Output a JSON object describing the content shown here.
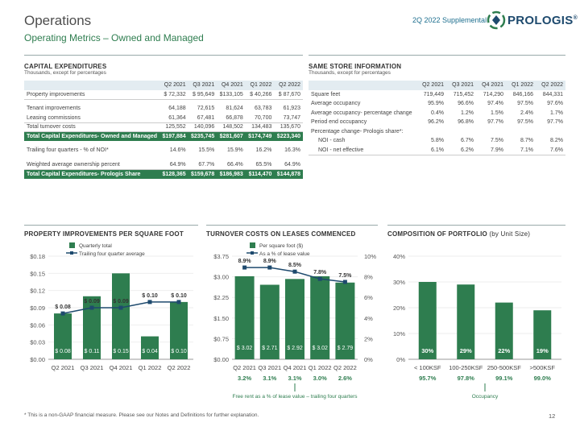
{
  "header": {
    "title": "Operations",
    "subtitle": "Operating Metrics – Owned and Managed",
    "supplement": "2Q 2022 Supplemental",
    "logo_text": "PROLOGIS",
    "logo_mark": "®",
    "brand_color": "#2e7d4f",
    "logo_color": "#1e4a6e"
  },
  "capex": {
    "heading": "CAPITAL EXPENDITURES",
    "subheading": "Thousands, except for percentages",
    "columns": [
      "Q2 2021",
      "Q3 2021",
      "Q4 2021",
      "Q1 2022",
      "Q2 2022"
    ],
    "rows": [
      {
        "label": "Property improvements",
        "values": [
          "$  72,332",
          "$  95,649",
          "$133,105",
          "$  40,266",
          "$  87,670"
        ],
        "style": "line"
      },
      {
        "label": "",
        "values": [
          "",
          "",
          "",
          "",
          ""
        ],
        "style": "gap"
      },
      {
        "label": "Tenant improvements",
        "values": [
          "64,188",
          "72,615",
          "81,624",
          "63,783",
          "61,923"
        ],
        "style": ""
      },
      {
        "label": "Leasing commissions",
        "values": [
          "61,364",
          "67,481",
          "66,878",
          "70,700",
          "73,747"
        ],
        "style": "line"
      },
      {
        "label": "Total turnover costs",
        "values": [
          "125,552",
          "140,096",
          "148,502",
          "134,483",
          "135,670"
        ],
        "style": "line"
      },
      {
        "label": "Total Capital Expenditures- Owned and Managed",
        "values": [
          "$197,884",
          "$235,745",
          "$281,607",
          "$174,749",
          "$223,340"
        ],
        "style": "hl"
      },
      {
        "label": "",
        "values": [
          "",
          "",
          "",
          "",
          ""
        ],
        "style": "gap"
      },
      {
        "label": "Trailing four quarters - % of NOI*",
        "values": [
          "14.6%",
          "15.5%",
          "15.9%",
          "16.2%",
          "16.3%"
        ],
        "style": ""
      },
      {
        "label": "",
        "values": [
          "",
          "",
          "",
          "",
          ""
        ],
        "style": "gap"
      },
      {
        "label": "Weighted average ownership percent",
        "values": [
          "64.9%",
          "67.7%",
          "66.4%",
          "65.5%",
          "64.9%"
        ],
        "style": "line"
      },
      {
        "label": "Total Capital Expenditures- Prologis Share",
        "values": [
          "$128,365",
          "$159,678",
          "$186,983",
          "$114,470",
          "$144,878"
        ],
        "style": "hl"
      }
    ]
  },
  "samestore": {
    "heading": "SAME STORE INFORMATION",
    "subheading": "Thousands, except for percentages",
    "columns": [
      "Q2 2021",
      "Q3 2021",
      "Q4 2021",
      "Q1 2022",
      "Q2 2022"
    ],
    "rows": [
      {
        "label": "Square feet",
        "values": [
          "719,449",
          "715,452",
          "714,290",
          "846,166",
          "844,331"
        ],
        "style": ""
      },
      {
        "label": "Average occupancy",
        "values": [
          "95.9%",
          "96.6%",
          "97.4%",
          "97.5%",
          "97.6%"
        ],
        "style": ""
      },
      {
        "label": "Average occupancy- percentage change",
        "values": [
          "0.4%",
          "1.2%",
          "1.5%",
          "2.4%",
          "1.7%"
        ],
        "style": ""
      },
      {
        "label": "Period end occupancy",
        "values": [
          "96.2%",
          "96.8%",
          "97.7%",
          "97.5%",
          "97.7%"
        ],
        "style": ""
      },
      {
        "label": "Percentage change- Prologis share*:",
        "values": [
          "",
          "",
          "",
          "",
          ""
        ],
        "style": ""
      },
      {
        "label": "NOI - cash",
        "values": [
          "5.8%",
          "6.7%",
          "7.5%",
          "8.7%",
          "8.2%"
        ],
        "style": "indent"
      },
      {
        "label": "NOI - net effective",
        "values": [
          "6.1%",
          "6.2%",
          "7.9%",
          "7.1%",
          "7.6%"
        ],
        "style": "indent line"
      }
    ]
  },
  "chart_data": [
    {
      "type": "bar",
      "title": "PROPERTY IMPROVEMENTS PER SQUARE FOOT",
      "categories": [
        "Q2 2021",
        "Q3 2021",
        "Q4 2021",
        "Q1 2022",
        "Q2 2022"
      ],
      "series": [
        {
          "name": "Quarterly total",
          "type": "bar",
          "values": [
            0.08,
            0.11,
            0.15,
            0.04,
            0.1
          ],
          "labels": [
            "$ 0.08",
            "$ 0.11",
            "$ 0.15",
            "$ 0.04",
            "$ 0.10"
          ]
        },
        {
          "name": "Trailing four quarter average",
          "type": "line",
          "values": [
            0.08,
            0.09,
            0.09,
            0.1,
            0.1
          ],
          "labels": [
            "$ 0.08",
            "$ 0.09",
            "$ 0.09",
            "$ 0.10",
            "$ 0.10"
          ]
        }
      ],
      "yticks": [
        "$0.00",
        "$0.03",
        "$0.06",
        "$0.09",
        "$0.12",
        "$0.15",
        "$0.18"
      ],
      "ylim": [
        0,
        0.18
      ],
      "legend": "top"
    },
    {
      "type": "bar",
      "title": "TURNOVER COSTS ON LEASES COMMENCED",
      "categories": [
        "Q2 2021",
        "Q3 2021",
        "Q4 2021",
        "Q1 2022",
        "Q2 2022"
      ],
      "series": [
        {
          "name": "Per square foot ($)",
          "type": "bar",
          "values": [
            3.02,
            2.71,
            2.92,
            3.02,
            2.79
          ],
          "labels": [
            "$ 3.02",
            "$ 2.71",
            "$ 2.92",
            "$ 3.02",
            "$ 2.79"
          ]
        },
        {
          "name": "As a % of lease value",
          "type": "line",
          "axis": "right",
          "values": [
            8.9,
            8.9,
            8.5,
            7.8,
            7.5
          ],
          "labels": [
            "8.9%",
            "8.9%",
            "8.5%",
            "7.8%",
            "7.5%"
          ]
        }
      ],
      "yticks": [
        "$0.00",
        "$0.75",
        "$1.50",
        "$2.25",
        "$3.00",
        "$3.75"
      ],
      "ylim": [
        0,
        3.75
      ],
      "y2ticks": [
        "0%",
        "2%",
        "4%",
        "6%",
        "8%",
        "10%"
      ],
      "y2lim": [
        0,
        10
      ],
      "free_rent": [
        "3.2%",
        "3.1%",
        "3.1%",
        "3.0%",
        "2.6%"
      ],
      "free_rent_label": "Free rent as a % of lease value – trailing four quarters",
      "legend": "top"
    },
    {
      "type": "bar",
      "title": "COMPOSITION OF PORTFOLIO",
      "title_suffix": " (by Unit Size)",
      "categories": [
        "< 100KSF",
        "100-250KSF",
        "250-500KSF",
        ">500KSF"
      ],
      "series": [
        {
          "name": "Composition",
          "type": "bar",
          "values": [
            30,
            29,
            22,
            19
          ],
          "labels": [
            "30%",
            "29%",
            "22%",
            "19%"
          ]
        }
      ],
      "occupancy": [
        "95.7%",
        "97.8%",
        "99.1%",
        "99.0%"
      ],
      "occupancy_label": "Occupancy",
      "yticks": [
        "0%",
        "10%",
        "20%",
        "30%",
        "40%"
      ],
      "ylim": [
        0,
        40
      ]
    }
  ],
  "footer": {
    "footnote": "* This is a non-GAAP financial measure. Please see our Notes and Definitions for further explanation.",
    "page": "12"
  }
}
